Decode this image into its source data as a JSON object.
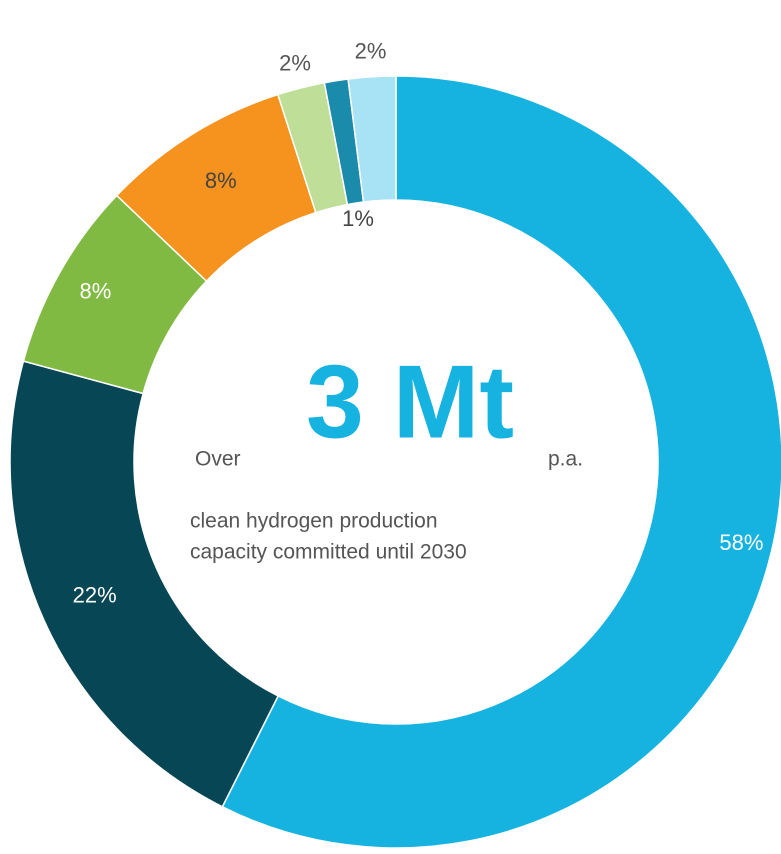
{
  "chart_data": {
    "type": "donut",
    "values": [
      58,
      22,
      8,
      8,
      2,
      1,
      2
    ],
    "value_labels": [
      "58%",
      "22%",
      "8%",
      "8%",
      "2%",
      "1%",
      "2%"
    ],
    "colors": [
      "#17b3e0",
      "#064655",
      "#80ba42",
      "#f6921e",
      "#bfde98",
      "#1b8bab",
      "#a8e2f5"
    ],
    "center_text": {
      "prefix": "Over",
      "headline": "3 Mt",
      "suffix": "p.a.",
      "line1": "clean hydrogen production",
      "line2": "capacity committed until 2030"
    }
  }
}
